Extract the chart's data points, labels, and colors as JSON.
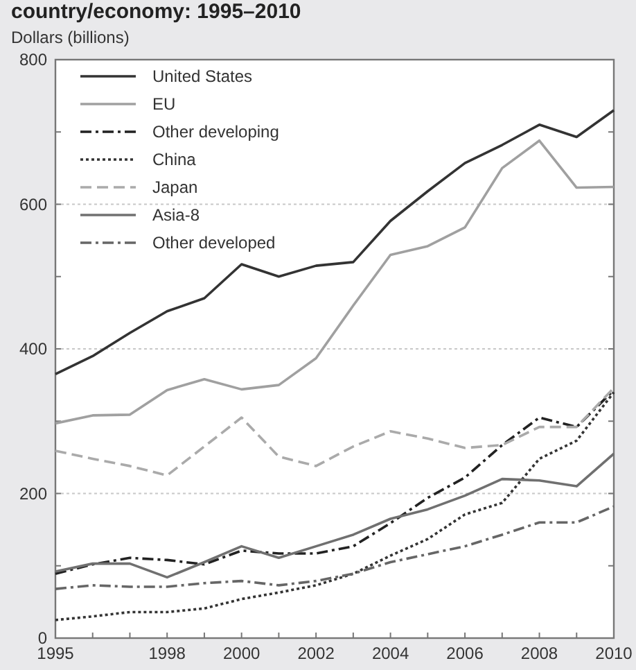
{
  "chart_data": {
    "type": "line",
    "title": "country/economy: 1995–2010",
    "subtitle": "Dollars (billions)",
    "x": [
      1995,
      1996,
      1997,
      1998,
      1999,
      2000,
      2001,
      2002,
      2003,
      2004,
      2005,
      2006,
      2007,
      2008,
      2009,
      2010
    ],
    "xlim": [
      1995,
      2010
    ],
    "xticks": [
      1995,
      {
        "value": 1996,
        "label": null
      },
      {
        "value": 1997,
        "label": null
      },
      1998,
      {
        "value": 1999,
        "label": null
      },
      2000,
      {
        "value": 2001,
        "label": null
      },
      2002,
      {
        "value": 2003,
        "label": null
      },
      2004,
      {
        "value": 2005,
        "label": null
      },
      2006,
      {
        "value": 2007,
        "label": null
      },
      2008,
      {
        "value": 2009,
        "label": null
      },
      2010
    ],
    "ylim": [
      0,
      800
    ],
    "yticks": [
      0,
      {
        "value": 100,
        "label": null
      },
      200,
      {
        "value": 300,
        "label": null
      },
      400,
      {
        "value": 500,
        "label": null
      },
      600,
      {
        "value": 700,
        "label": null
      },
      800
    ],
    "grid": "y",
    "legend": "top left",
    "marker": "none",
    "series": [
      {
        "name": "United States",
        "color": "#333333",
        "line_style": "solid",
        "values": [
          365,
          390,
          422,
          452,
          470,
          517,
          500,
          515,
          520,
          577,
          618,
          657,
          682,
          710,
          693,
          730
        ]
      },
      {
        "name": "EU",
        "color": "#a0a0a0",
        "line_style": "solid",
        "values": [
          297,
          308,
          309,
          343,
          358,
          344,
          350,
          387,
          460,
          530,
          542,
          568,
          650,
          688,
          623,
          624
        ]
      },
      {
        "name": "Other developing",
        "color": "#222222",
        "line_style": "dashdot",
        "values": [
          89,
          102,
          111,
          108,
          102,
          121,
          117,
          117,
          127,
          159,
          194,
          222,
          267,
          305,
          292,
          343
        ]
      },
      {
        "name": "China",
        "color": "#333333",
        "line_style": "dotted",
        "values": [
          25,
          30,
          36,
          36,
          41,
          54,
          63,
          73,
          89,
          114,
          137,
          171,
          187,
          248,
          273,
          340
        ]
      },
      {
        "name": "Japan",
        "color": "#aaaaaa",
        "line_style": "dashed",
        "values": [
          259,
          248,
          238,
          225,
          265,
          305,
          251,
          238,
          265,
          286,
          276,
          263,
          267,
          292,
          292,
          346
        ]
      },
      {
        "name": "Asia-8",
        "color": "#707070",
        "line_style": "solid",
        "values": [
          92,
          103,
          103,
          84,
          105,
          127,
          111,
          127,
          143,
          165,
          178,
          197,
          220,
          218,
          210,
          255
        ]
      },
      {
        "name": "Other developed",
        "color": "#666666",
        "line_style": "dashdot",
        "values": [
          68,
          73,
          71,
          71,
          76,
          79,
          73,
          79,
          89,
          105,
          116,
          127,
          143,
          160,
          160,
          182
        ]
      }
    ]
  }
}
